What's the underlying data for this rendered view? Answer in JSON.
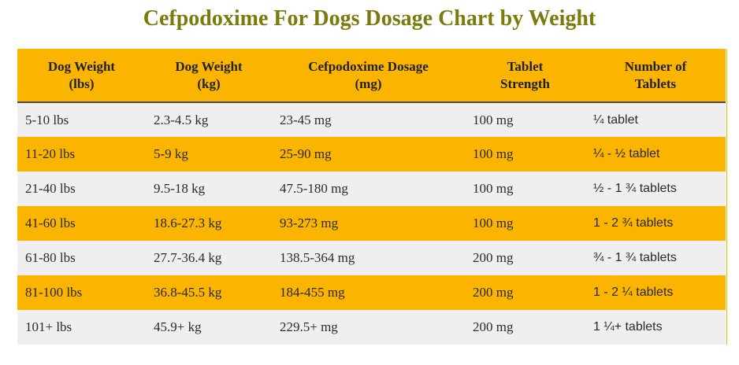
{
  "title": "Cefpodoxime For Dogs Dosage Chart by Weight",
  "table": {
    "headers": [
      {
        "line1": "Dog Weight",
        "line2": "(lbs)"
      },
      {
        "line1": "Dog Weight",
        "line2": "(kg)"
      },
      {
        "line1": "Cefpodoxime Dosage",
        "line2": "(mg)"
      },
      {
        "line1": "Tablet",
        "line2": "Strength"
      },
      {
        "line1": "Number of",
        "line2": "Tablets"
      }
    ],
    "rows": [
      [
        "5-10 lbs",
        "2.3-4.5 kg",
        "23-45 mg",
        "100 mg",
        "¼ tablet"
      ],
      [
        "11-20 lbs",
        "5-9 kg",
        "25-90 mg",
        "100 mg",
        "¼ - ½ tablet"
      ],
      [
        "21-40 lbs",
        "9.5-18 kg",
        "47.5-180 mg",
        "100 mg",
        "½ - 1 ¾ tablets"
      ],
      [
        "41-60 lbs",
        "18.6-27.3 kg",
        "93-273 mg",
        "100 mg",
        "1 - 2 ¾ tablets"
      ],
      [
        "61-80 lbs",
        "27.7-36.4 kg",
        "138.5-364 mg",
        "200 mg",
        "¾ - 1 ¾ tablets"
      ],
      [
        "81-100 lbs",
        "36.8-45.5 kg",
        "184-455 mg",
        "200 mg",
        "1 - 2 ¼ tablets"
      ],
      [
        "101+ lbs",
        "45.9+ kg",
        "229.5+ mg",
        "200 mg",
        "1 ¼+ tablets"
      ]
    ]
  },
  "colors": {
    "title": "#7b7b0c",
    "header_bg": "#fbb400",
    "row_alt_bg": "#efefef",
    "row_highlight_bg": "#fbb400"
  }
}
